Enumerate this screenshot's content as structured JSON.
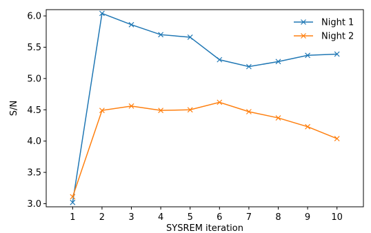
{
  "chart_data": {
    "type": "line",
    "title": "",
    "xlabel": "SYSREM iteration",
    "ylabel": "S/N",
    "x": [
      1,
      2,
      3,
      4,
      5,
      6,
      7,
      8,
      9,
      10
    ],
    "xticks": [
      "1",
      "2",
      "3",
      "4",
      "5",
      "6",
      "7",
      "8",
      "9",
      "10"
    ],
    "yticks": [
      "3.0",
      "3.5",
      "4.0",
      "4.5",
      "5.0",
      "5.5",
      "6.0"
    ],
    "xlim": [
      0.1,
      10.9
    ],
    "ylim": [
      2.95,
      6.1
    ],
    "grid": false,
    "legend": "top-right",
    "marker": "x",
    "series": [
      {
        "name": "Night 1",
        "color": "#1f77b4",
        "values": [
          3.02,
          6.04,
          5.86,
          5.7,
          5.66,
          5.3,
          5.19,
          5.27,
          5.37,
          5.39
        ]
      },
      {
        "name": "Night 2",
        "color": "#ff7f0e",
        "values": [
          3.11,
          4.49,
          4.56,
          4.49,
          4.5,
          4.62,
          4.47,
          4.37,
          4.23,
          4.04
        ]
      }
    ]
  }
}
